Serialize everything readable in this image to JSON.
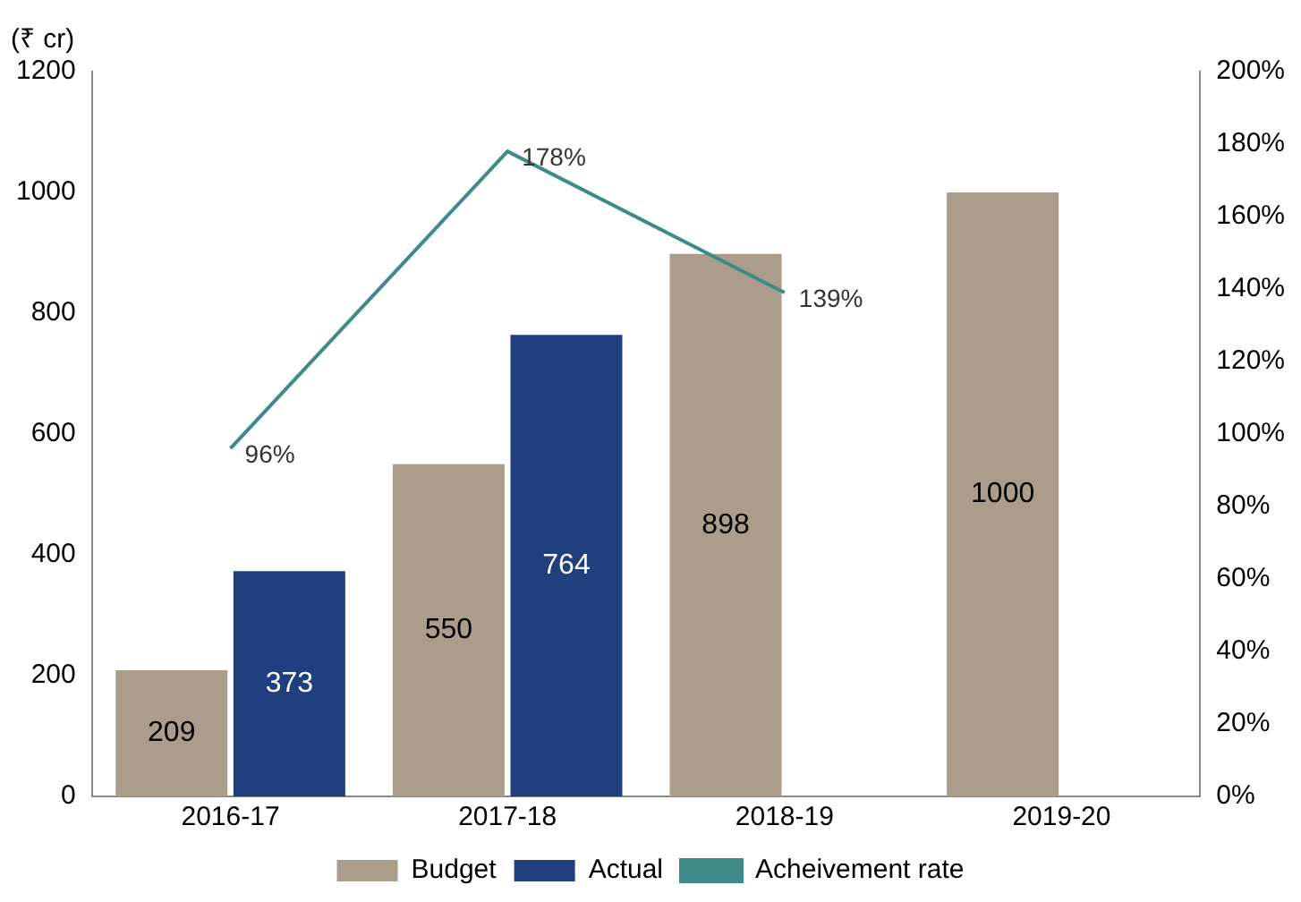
{
  "chart_data": {
    "type": "bar",
    "ylabel": "(₹ cr)",
    "categories": [
      "2016-17",
      "2017-18",
      "2018-19",
      "2019-20"
    ],
    "series": [
      {
        "name": "Budget",
        "color": "#ab9d8a",
        "values": [
          209,
          550,
          898,
          1000
        ],
        "value_labels": [
          "209",
          "550",
          "898",
          "1000"
        ]
      },
      {
        "name": "Actual",
        "color": "#1f3f7f",
        "values": [
          373,
          764,
          null,
          null
        ],
        "value_labels": [
          "373",
          "764",
          null,
          null
        ]
      },
      {
        "name": "Acheivement rate",
        "type": "line",
        "axis": "y2",
        "color": "#3d8a88",
        "values": [
          96,
          178,
          139,
          null
        ],
        "value_labels": [
          "96%",
          "178%",
          "139%",
          null
        ]
      }
    ],
    "ylim": [
      0,
      1200
    ],
    "yticks": [
      0,
      200,
      400,
      600,
      800,
      1000,
      1200
    ],
    "y2lim": [
      0,
      200
    ],
    "y2ticks": [
      {
        "value": 0,
        "label": "0%"
      },
      {
        "value": 20,
        "label": "20%"
      },
      {
        "value": 40,
        "label": "40%"
      },
      {
        "value": 60,
        "label": "60%"
      },
      {
        "value": 80,
        "label": "80%"
      },
      {
        "value": 100,
        "label": "100%"
      },
      {
        "value": 120,
        "label": "120%"
      },
      {
        "value": 140,
        "label": "140%"
      },
      {
        "value": 160,
        "label": "160%"
      },
      {
        "value": 180,
        "label": "180%"
      },
      {
        "value": 200,
        "label": "200%"
      }
    ],
    "grid": false,
    "legend": "bottom",
    "marker": "none"
  }
}
